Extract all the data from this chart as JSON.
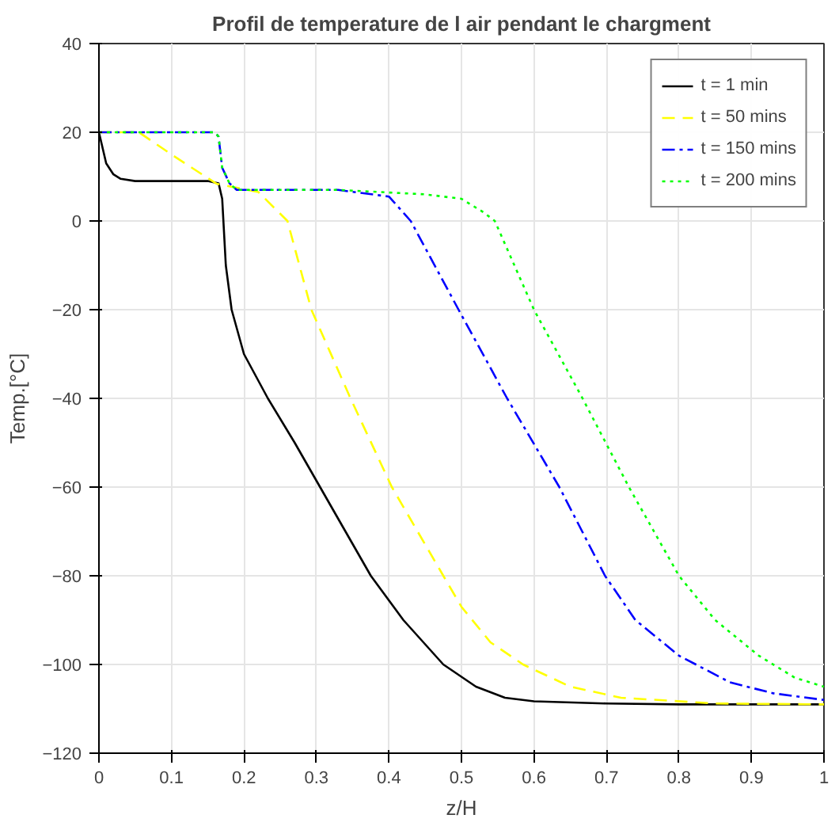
{
  "chart_data": {
    "type": "line",
    "title": "Profil de temperature de l air pendant le chargment",
    "xlabel": "z/H",
    "ylabel": "Temp.[°C]",
    "xlim": [
      0,
      1
    ],
    "ylim": [
      -120,
      40
    ],
    "xticks": [
      0,
      0.1,
      0.2,
      0.3,
      0.4,
      0.5,
      0.6,
      0.7,
      0.8,
      0.9,
      1
    ],
    "yticks": [
      -120,
      -100,
      -80,
      -60,
      -40,
      -20,
      0,
      20,
      40
    ],
    "grid": true,
    "legend": "top right",
    "marker": "none",
    "series": [
      {
        "name": "t = 1 min",
        "color": "#000000",
        "line_style": "solid",
        "x": [
          0,
          0.01,
          0.02,
          0.03,
          0.05,
          0.1,
          0.15,
          0.165,
          0.17,
          0.175,
          0.183,
          0.2,
          0.233,
          0.27,
          0.305,
          0.34,
          0.375,
          0.42,
          0.475,
          0.52,
          0.56,
          0.6,
          0.7,
          0.8,
          1
        ],
        "values": [
          20,
          13,
          10.5,
          9.5,
          9,
          9,
          9,
          8.5,
          5,
          -10,
          -20,
          -30,
          -40,
          -50,
          -60,
          -70,
          -80,
          -90,
          -100,
          -105,
          -107.5,
          -108.3,
          -108.8,
          -109,
          -109
        ]
      },
      {
        "name": "t = 50 mins",
        "color": "#ffff00",
        "line_style": "dashed",
        "x": [
          0,
          0.055,
          0.1,
          0.162,
          0.22,
          0.26,
          0.293,
          0.347,
          0.404,
          0.475,
          0.5,
          0.54,
          0.585,
          0.65,
          0.72,
          0.85,
          1
        ],
        "values": [
          20,
          20,
          15,
          8.4,
          6.5,
          0,
          -20,
          -40,
          -60,
          -80,
          -87,
          -95,
          -100,
          -105,
          -107.5,
          -108.8,
          -109
        ]
      },
      {
        "name": "t = 150 mins",
        "color": "#0000ff",
        "line_style": "dashdot",
        "x": [
          0,
          0.16,
          0.165,
          0.17,
          0.18,
          0.19,
          0.25,
          0.33,
          0.4,
          0.43,
          0.496,
          0.563,
          0.635,
          0.698,
          0.74,
          0.8,
          0.87,
          0.93,
          1
        ],
        "values": [
          20,
          20,
          19,
          12,
          8.5,
          7,
          7,
          7,
          5.5,
          0,
          -20,
          -40,
          -60,
          -80,
          -90,
          -98,
          -104,
          -106.5,
          -108
        ]
      },
      {
        "name": "t = 200 mins",
        "color": "#00ff00",
        "line_style": "dotted",
        "x": [
          0,
          0.16,
          0.165,
          0.17,
          0.18,
          0.19,
          0.25,
          0.33,
          0.45,
          0.5,
          0.53,
          0.546,
          0.6,
          0.667,
          0.731,
          0.8,
          0.85,
          0.91,
          0.96,
          1
        ],
        "values": [
          20,
          20,
          19,
          12,
          8.5,
          7,
          7,
          7,
          6,
          5,
          2,
          0,
          -20,
          -40,
          -60,
          -80,
          -90,
          -98,
          -103,
          -105
        ]
      }
    ]
  }
}
